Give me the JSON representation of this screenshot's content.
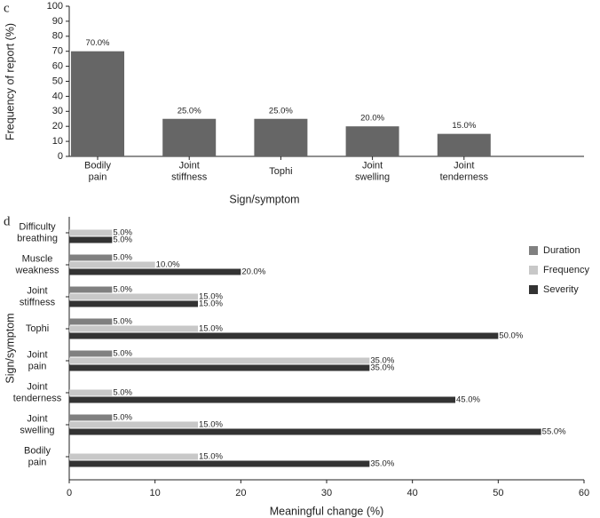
{
  "chart_data": [
    {
      "type": "bar",
      "panel_label": "c",
      "categories": [
        "Bodily pain",
        "Joint stiffness",
        "Tophi",
        "Joint swelling",
        "Joint tenderness"
      ],
      "values": [
        70,
        25,
        25,
        20,
        15
      ],
      "value_labels": [
        "70.0%",
        "25.0%",
        "25.0%",
        "20.0%",
        "15.0%"
      ],
      "color": "#666666",
      "ylim": [
        0,
        100
      ],
      "yticks": [
        0,
        10,
        20,
        30,
        40,
        50,
        60,
        70,
        80,
        90,
        100
      ],
      "ylabel": "Frequency of report (%)",
      "xlabel": "Sign/symptom"
    },
    {
      "type": "hbar",
      "panel_label": "d",
      "categories": [
        "Difficulty breathing",
        "Muscle weakness",
        "Joint stiffness",
        "Tophi",
        "Joint pain",
        "Joint tenderness",
        "Joint swelling",
        "Bodily pain"
      ],
      "series": [
        {
          "name": "Duration",
          "color": "#808080",
          "values": [
            null,
            5,
            5,
            5,
            5,
            null,
            5,
            null
          ],
          "value_labels": [
            null,
            "5.0%",
            "5.0%",
            "5.0%",
            "5.0%",
            null,
            "5.0%",
            null
          ]
        },
        {
          "name": "Frequency",
          "color": "#c8c8c8",
          "values": [
            5,
            10,
            15,
            15,
            35,
            5,
            15,
            15
          ],
          "value_labels": [
            "5.0%",
            "10.0%",
            "15.0%",
            "15.0%",
            "35.0%",
            "5.0%",
            "15.0%",
            "15.0%"
          ]
        },
        {
          "name": "Severity",
          "color": "#333333",
          "values": [
            5,
            20,
            15,
            50,
            35,
            45,
            55,
            35
          ],
          "value_labels": [
            "5.0%",
            "20.0%",
            "15.0%",
            "50.0%",
            "35.0%",
            "45.0%",
            "55.0%",
            "35.0%"
          ]
        }
      ],
      "xlim": [
        0,
        60
      ],
      "xticks": [
        0,
        10,
        20,
        30,
        40,
        50,
        60
      ],
      "xlabel": "Meaningful change (%)",
      "ylabel": "Sign/symptom",
      "legend": "upper right"
    }
  ]
}
